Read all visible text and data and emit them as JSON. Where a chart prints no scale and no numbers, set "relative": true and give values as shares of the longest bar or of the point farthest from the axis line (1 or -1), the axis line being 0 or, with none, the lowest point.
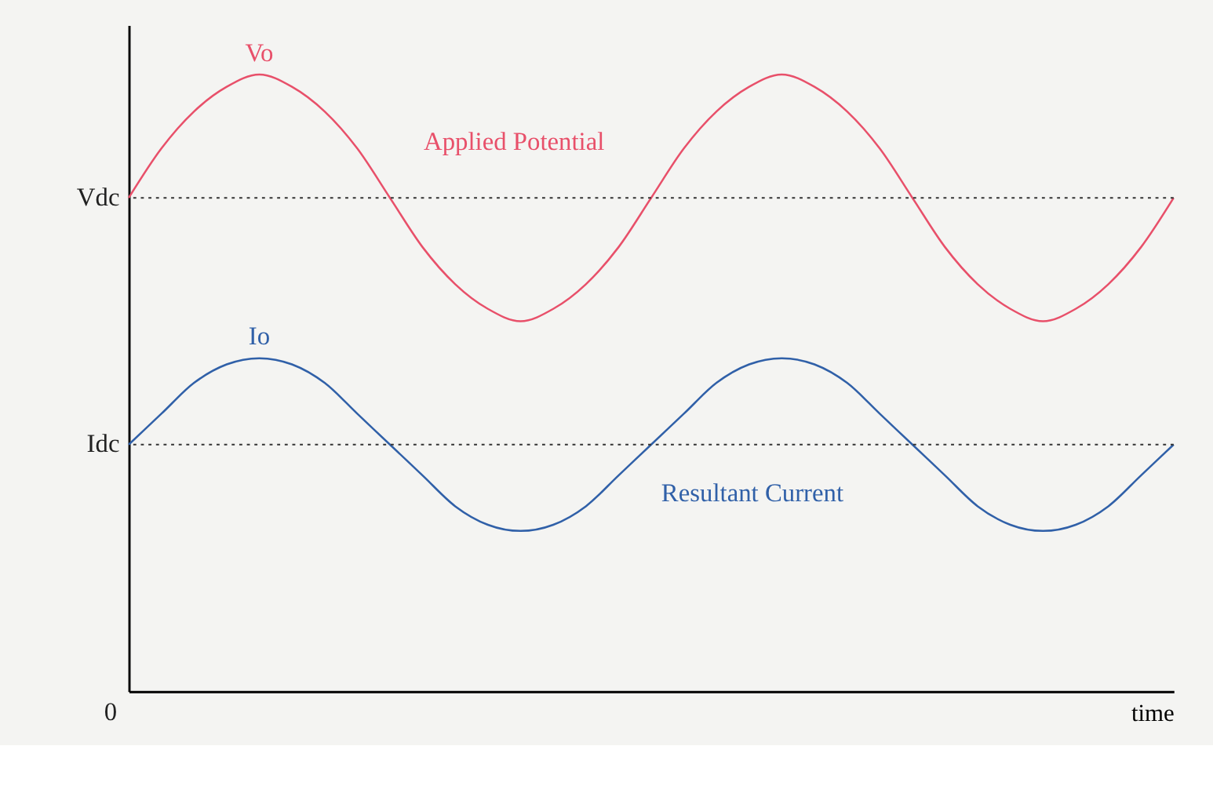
{
  "chart_data": {
    "type": "line",
    "relative": true,
    "xlabel": "time",
    "categories": [
      null,
      null,
      null,
      null,
      null,
      null,
      null,
      null,
      null,
      null,
      null,
      null,
      null,
      null,
      null,
      null,
      null,
      null,
      null,
      null,
      null,
      null,
      null,
      null,
      null,
      null,
      null,
      null,
      null,
      null,
      null,
      null,
      null
    ],
    "series": [
      {
        "color": "#e8506a",
        "values": [
          0.8,
          0.88,
          0.94,
          0.98,
          1.0,
          0.98,
          0.94,
          0.88,
          0.8,
          0.72,
          0.66,
          0.62,
          0.6,
          0.62,
          0.66,
          0.72,
          0.8,
          0.88,
          0.94,
          0.98,
          1.0,
          0.98,
          0.94,
          0.88,
          0.8,
          0.72,
          0.66,
          0.62,
          0.6,
          0.62,
          0.66,
          0.72,
          0.8
        ]
      },
      {
        "color": "#3060a8",
        "values": [
          0.4,
          0.45,
          0.5,
          0.53,
          0.54,
          0.53,
          0.5,
          0.45,
          0.4,
          0.35,
          0.3,
          0.27,
          0.26,
          0.27,
          0.3,
          0.35,
          0.4,
          0.45,
          0.5,
          0.53,
          0.54,
          0.53,
          0.5,
          0.45,
          0.4,
          0.35,
          0.3,
          0.27,
          0.26,
          0.27,
          0.3,
          0.35,
          0.4
        ]
      }
    ],
    "ref_lines": [
      {
        "axis": "y",
        "value": 0.8,
        "label": "Vdc",
        "color": "#333333",
        "line_style": "dotted"
      },
      {
        "axis": "y",
        "value": 0.4,
        "label": "Idc",
        "color": "#333333",
        "line_style": "dotted"
      }
    ],
    "annotations": [
      {
        "text": "Vo",
        "y": 1.0
      },
      {
        "text": "Io",
        "y": 0.54
      },
      "Applied Potential",
      "Resultant Current",
      "0"
    ],
    "line_style": "solid"
  }
}
